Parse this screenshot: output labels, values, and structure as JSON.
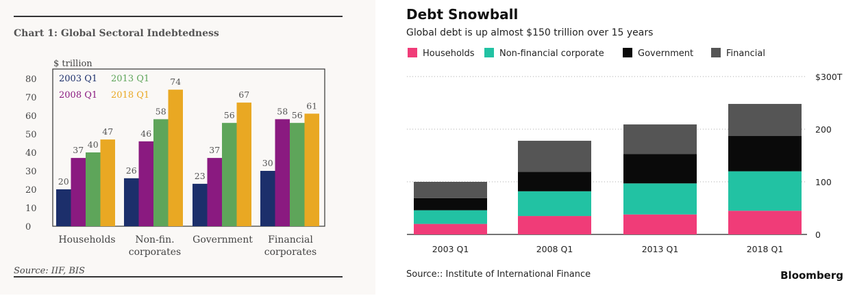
{
  "chart_data": [
    {
      "type": "bar",
      "title": "Chart 1: Global Sectoral Indebtedness",
      "ylabel": "$ trillion",
      "ylim": [
        0,
        80
      ],
      "yticks": [
        "0",
        "10",
        "20",
        "30",
        "40",
        "50",
        "60",
        "70",
        "80"
      ],
      "categories": [
        [
          "Households"
        ],
        [
          "Non-fin.",
          "corporates"
        ],
        [
          "Government"
        ],
        [
          "Financial",
          "corporates"
        ]
      ],
      "series": [
        {
          "name": "2003 Q1",
          "color": "#1c2f6b",
          "values": [
            20,
            26,
            23,
            30
          ]
        },
        {
          "name": "2008 Q1",
          "color": "#8a1a80",
          "values": [
            37,
            46,
            37,
            58
          ]
        },
        {
          "name": "2013 Q1",
          "color": "#5ea55a",
          "values": [
            40,
            58,
            56,
            56
          ]
        },
        {
          "name": "2018 Q1",
          "color": "#e9a823",
          "values": [
            47,
            74,
            67,
            61
          ]
        }
      ],
      "data_labels": [
        [
          "20",
          "26",
          "23",
          "30"
        ],
        [
          "37",
          "46",
          "37",
          "58"
        ],
        [
          "40",
          "58",
          "56",
          "56"
        ],
        [
          "47",
          "74",
          "67",
          "61"
        ]
      ],
      "legend_position": "top-left",
      "source": "Source: IIF, BIS",
      "grid": false
    },
    {
      "type": "bar",
      "stacked": true,
      "title": "Debt Snowball",
      "subtitle": "Global debt is up almost $150 trillion over 15 years",
      "categories": [
        "2003 Q1",
        "2008 Q1",
        "2013 Q1",
        "2018 Q1"
      ],
      "series": [
        {
          "name": "Households",
          "color": "#f03c78",
          "values": [
            20,
            35,
            38,
            45
          ]
        },
        {
          "name": "Non-financial corporate",
          "color": "#22c2a3",
          "values": [
            26,
            47,
            59,
            75
          ]
        },
        {
          "name": "Government",
          "color": "#0a0a0a",
          "values": [
            23,
            37,
            56,
            67
          ]
        },
        {
          "name": "Financial",
          "color": "#555555",
          "values": [
            31,
            59,
            56,
            61
          ]
        }
      ],
      "ylim": [
        0,
        300
      ],
      "yticks": [
        "0",
        "100",
        "200",
        "$300T"
      ],
      "yaxis_position": "right",
      "grid": true,
      "legend_position": "top",
      "source": "Source:: Institute of International Finance",
      "brand": "Bloomberg"
    }
  ]
}
